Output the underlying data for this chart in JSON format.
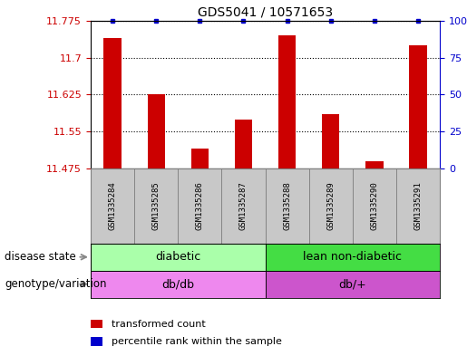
{
  "title": "GDS5041 / 10571653",
  "samples": [
    "GSM1335284",
    "GSM1335285",
    "GSM1335286",
    "GSM1335287",
    "GSM1335288",
    "GSM1335289",
    "GSM1335290",
    "GSM1335291"
  ],
  "transformed_counts": [
    11.74,
    11.625,
    11.515,
    11.575,
    11.745,
    11.585,
    11.49,
    11.725
  ],
  "percentile_ranks": [
    100,
    100,
    100,
    100,
    100,
    100,
    100,
    100
  ],
  "y_min": 11.475,
  "y_max": 11.775,
  "y_ticks": [
    11.475,
    11.55,
    11.625,
    11.7,
    11.775
  ],
  "y2_ticks": [
    0,
    25,
    50,
    75,
    100
  ],
  "disease_state": [
    {
      "label": "diabetic",
      "start": 0,
      "end": 4,
      "color": "#aaffaa"
    },
    {
      "label": "lean non-diabetic",
      "start": 4,
      "end": 8,
      "color": "#44dd44"
    }
  ],
  "genotype": [
    {
      "label": "db/db",
      "start": 0,
      "end": 4,
      "color": "#ee88ee"
    },
    {
      "label": "db/+",
      "start": 4,
      "end": 8,
      "color": "#cc55cc"
    }
  ],
  "bar_color": "#cc0000",
  "dot_color": "#0000cc",
  "label_color_left": "#cc0000",
  "label_color_right": "#0000cc",
  "legend_bar": "transformed count",
  "legend_dot": "percentile rank within the sample",
  "label_row1": "disease state",
  "label_row2": "genotype/variation",
  "sample_box_color": "#c8c8c8",
  "sample_box_border": "#808080"
}
